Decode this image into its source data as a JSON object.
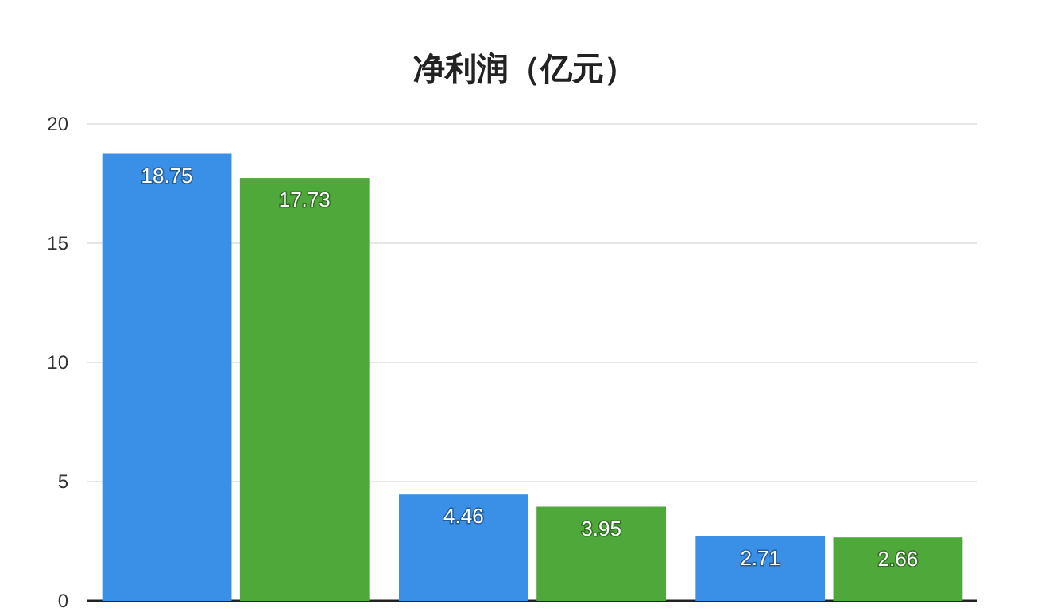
{
  "chart_data": {
    "type": "bar",
    "title": "净利润（亿元）",
    "categories": [
      null,
      null,
      null
    ],
    "series": [
      {
        "color": "#3a8fe6",
        "values": [
          18.75,
          4.46,
          2.71
        ]
      },
      {
        "color": "#4ea83a",
        "values": [
          17.73,
          3.95,
          2.66
        ]
      }
    ],
    "ylim": [
      0,
      20
    ],
    "yticks": [
      0,
      5,
      10,
      15,
      20
    ],
    "grid": "y",
    "data_labels": true
  }
}
